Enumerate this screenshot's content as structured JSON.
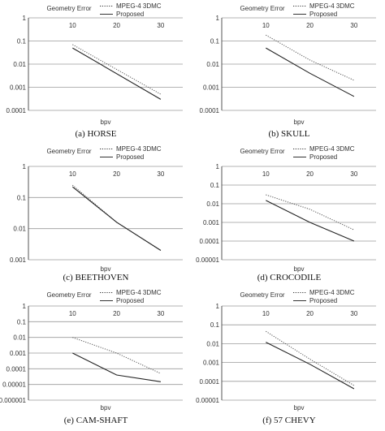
{
  "chart_data": [
    {
      "type": "line",
      "caption": "(a) HORSE",
      "title": "Geometry Error",
      "xlabel": "bpv",
      "yscale": "log",
      "ylim": [
        0.0001,
        1
      ],
      "y_ticks": [
        "1",
        "0.1",
        "0.01",
        "0.001",
        "0.0001"
      ],
      "x_ticks": [
        "10",
        "20",
        "30"
      ],
      "xlim": [
        0,
        35
      ],
      "grid": true,
      "legend": "top-right",
      "series": [
        {
          "name": "MPEG-4 3DMC",
          "style": "dotted",
          "x": [
            10,
            30
          ],
          "y": [
            0.07,
            0.0005
          ]
        },
        {
          "name": "Proposed",
          "style": "solid",
          "x": [
            10,
            30
          ],
          "y": [
            0.05,
            0.0003
          ]
        }
      ]
    },
    {
      "type": "line",
      "caption": "(b) SKULL",
      "title": "Geometry Error",
      "xlabel": "bpv",
      "yscale": "log",
      "ylim": [
        0.0001,
        1
      ],
      "y_ticks": [
        "1",
        "0.1",
        "0.01",
        "0.001",
        "0.0001"
      ],
      "x_ticks": [
        "10",
        "20",
        "30"
      ],
      "xlim": [
        0,
        35
      ],
      "grid": true,
      "legend": "top-right",
      "series": [
        {
          "name": "MPEG-4 3DMC",
          "style": "dotted",
          "x": [
            10,
            20,
            30
          ],
          "y": [
            0.18,
            0.015,
            0.002
          ]
        },
        {
          "name": "Proposed",
          "style": "solid",
          "x": [
            10,
            20,
            30
          ],
          "y": [
            0.05,
            0.004,
            0.0004
          ]
        }
      ]
    },
    {
      "type": "line",
      "caption": "(c) BEETHOVEN",
      "title": "Geometry Error",
      "xlabel": "bpv",
      "yscale": "log",
      "ylim": [
        0.001,
        1
      ],
      "y_ticks": [
        "1",
        "0.1",
        "0.01",
        "0.001"
      ],
      "x_ticks": [
        "10",
        "20",
        "30"
      ],
      "xlim": [
        0,
        35
      ],
      "grid": true,
      "legend": "top-right",
      "series": [
        {
          "name": "MPEG-4 3DMC",
          "style": "dotted",
          "x": [
            10,
            20,
            30
          ],
          "y": [
            0.25,
            0.016,
            0.002
          ]
        },
        {
          "name": "Proposed",
          "style": "solid",
          "x": [
            10,
            20,
            30
          ],
          "y": [
            0.22,
            0.016,
            0.002
          ]
        }
      ]
    },
    {
      "type": "line",
      "caption": "(d) CROCODILE",
      "title": "Geometry Error",
      "xlabel": "bpv",
      "yscale": "log",
      "ylim": [
        1e-05,
        1
      ],
      "y_ticks": [
        "1",
        "0.1",
        "0.01",
        "0.001",
        "0.0001",
        "0.00001"
      ],
      "x_ticks": [
        "10",
        "20",
        "30"
      ],
      "xlim": [
        0,
        35
      ],
      "grid": true,
      "legend": "top-right",
      "series": [
        {
          "name": "MPEG-4 3DMC",
          "style": "dotted",
          "x": [
            10,
            20,
            30
          ],
          "y": [
            0.03,
            0.005,
            0.0004
          ]
        },
        {
          "name": "Proposed",
          "style": "solid",
          "x": [
            10,
            20,
            30
          ],
          "y": [
            0.015,
            0.001,
            0.0001
          ]
        }
      ]
    },
    {
      "type": "line",
      "caption": "(e) CAM-SHAFT",
      "title": "Geometry Error",
      "xlabel": "bpv",
      "yscale": "log",
      "ylim": [
        1e-06,
        1
      ],
      "y_ticks": [
        "1",
        "0.1",
        "0.01",
        "0.001",
        "0.0001",
        "0.00001",
        "0.000001"
      ],
      "x_ticks": [
        "10",
        "20",
        "30"
      ],
      "xlim": [
        0,
        35
      ],
      "grid": true,
      "legend": "top-right",
      "series": [
        {
          "name": "MPEG-4 3DMC",
          "style": "dotted",
          "x": [
            10,
            20,
            30
          ],
          "y": [
            0.01,
            0.001,
            5e-05
          ]
        },
        {
          "name": "Proposed",
          "style": "solid",
          "x": [
            10,
            20,
            30
          ],
          "y": [
            0.001,
            4e-05,
            1.5e-05
          ]
        }
      ]
    },
    {
      "type": "line",
      "caption": "(f) 57 CHEVY",
      "title": "Geometry Error",
      "xlabel": "bpv",
      "yscale": "log",
      "ylim": [
        1e-05,
        1
      ],
      "y_ticks": [
        "1",
        "0.1",
        "0.01",
        "0.001",
        "0.0001",
        "0.00001"
      ],
      "x_ticks": [
        "10",
        "20",
        "30"
      ],
      "xlim": [
        0,
        35
      ],
      "grid": true,
      "legend": "top-right",
      "series": [
        {
          "name": "MPEG-4 3DMC",
          "style": "dotted",
          "x": [
            10,
            20,
            30
          ],
          "y": [
            0.045,
            0.0015,
            6e-05
          ]
        },
        {
          "name": "Proposed",
          "style": "solid",
          "x": [
            10,
            20,
            30
          ],
          "y": [
            0.012,
            0.0008,
            4e-05
          ]
        }
      ]
    }
  ]
}
